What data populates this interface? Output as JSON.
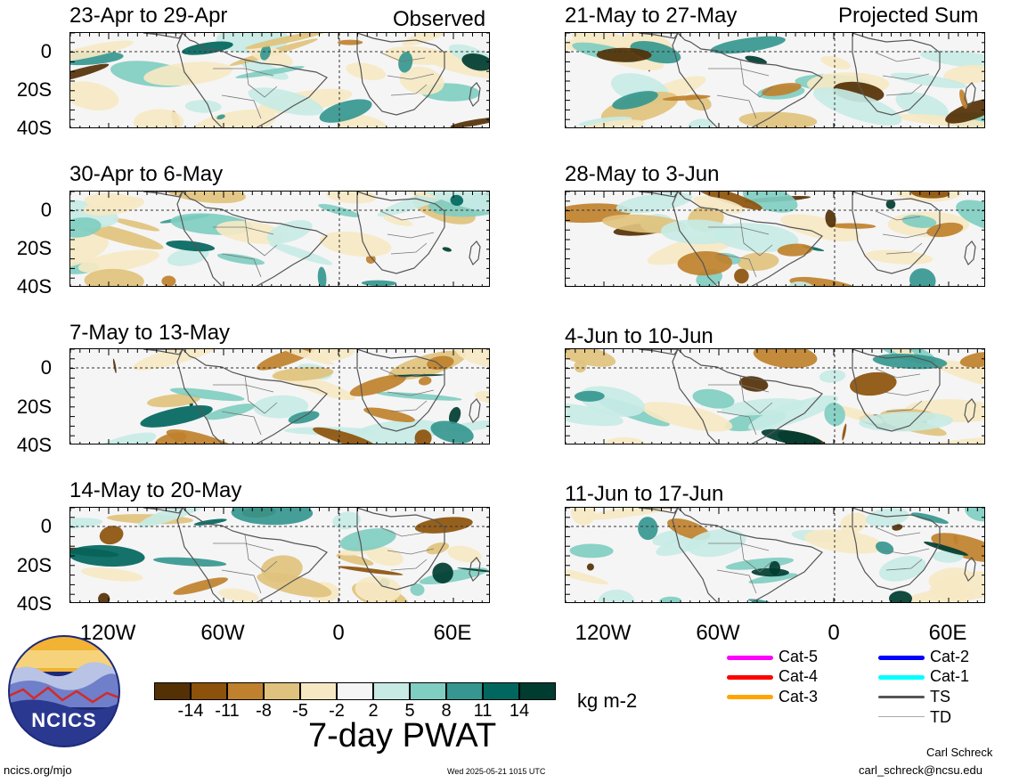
{
  "header": {
    "left_label": "Observed",
    "right_label": "Projected Sum"
  },
  "panels": [
    {
      "title": "23-Apr to 29-Apr",
      "col": 0,
      "row": 0
    },
    {
      "title": "30-Apr to 6-May",
      "col": 0,
      "row": 1
    },
    {
      "title": "7-May to 13-May",
      "col": 0,
      "row": 2
    },
    {
      "title": "14-May to 20-May",
      "col": 0,
      "row": 3
    },
    {
      "title": "21-May to 27-May",
      "col": 1,
      "row": 0
    },
    {
      "title": "28-May to 3-Jun",
      "col": 1,
      "row": 1
    },
    {
      "title": "4-Jun to 10-Jun",
      "col": 1,
      "row": 2
    },
    {
      "title": "11-Jun to 17-Jun",
      "col": 1,
      "row": 3
    }
  ],
  "axes": {
    "y_labels": [
      "0",
      "20S",
      "40S"
    ],
    "x_labels": [
      "120W",
      "60W",
      "0",
      "60E"
    ]
  },
  "colorbar": {
    "colors": [
      "#543005",
      "#8c510a",
      "#bf812d",
      "#dfc27d",
      "#f6e8c3",
      "#f5f5f5",
      "#c7eae5",
      "#80cdc1",
      "#35978f",
      "#01665e",
      "#003c30"
    ],
    "tick_labels": [
      "-14",
      "-11",
      "-8",
      "-5",
      "-2",
      "2",
      "5",
      "8",
      "11",
      "14"
    ],
    "units": "kg m-2"
  },
  "main_title": "7-day PWAT",
  "legend": [
    {
      "label": "Cat-5",
      "color": "#ff00ff"
    },
    {
      "label": "Cat-4",
      "color": "#ff0000"
    },
    {
      "label": "Cat-3",
      "color": "#ffa500"
    },
    {
      "label": "Cat-2",
      "color": "#0000ff"
    },
    {
      "label": "Cat-1",
      "color": "#00ffff"
    },
    {
      "label": "TS",
      "color": "#555555"
    },
    {
      "label": "TD",
      "color": "#aaaaaa"
    }
  ],
  "logo": {
    "text": "NCICS"
  },
  "footer": {
    "left": "ncics.org/mjo",
    "center": "Wed 2025-05-21 1015 UTC",
    "author": "Carl Schreck",
    "email": "carl_schreck@ncsu.edu"
  }
}
